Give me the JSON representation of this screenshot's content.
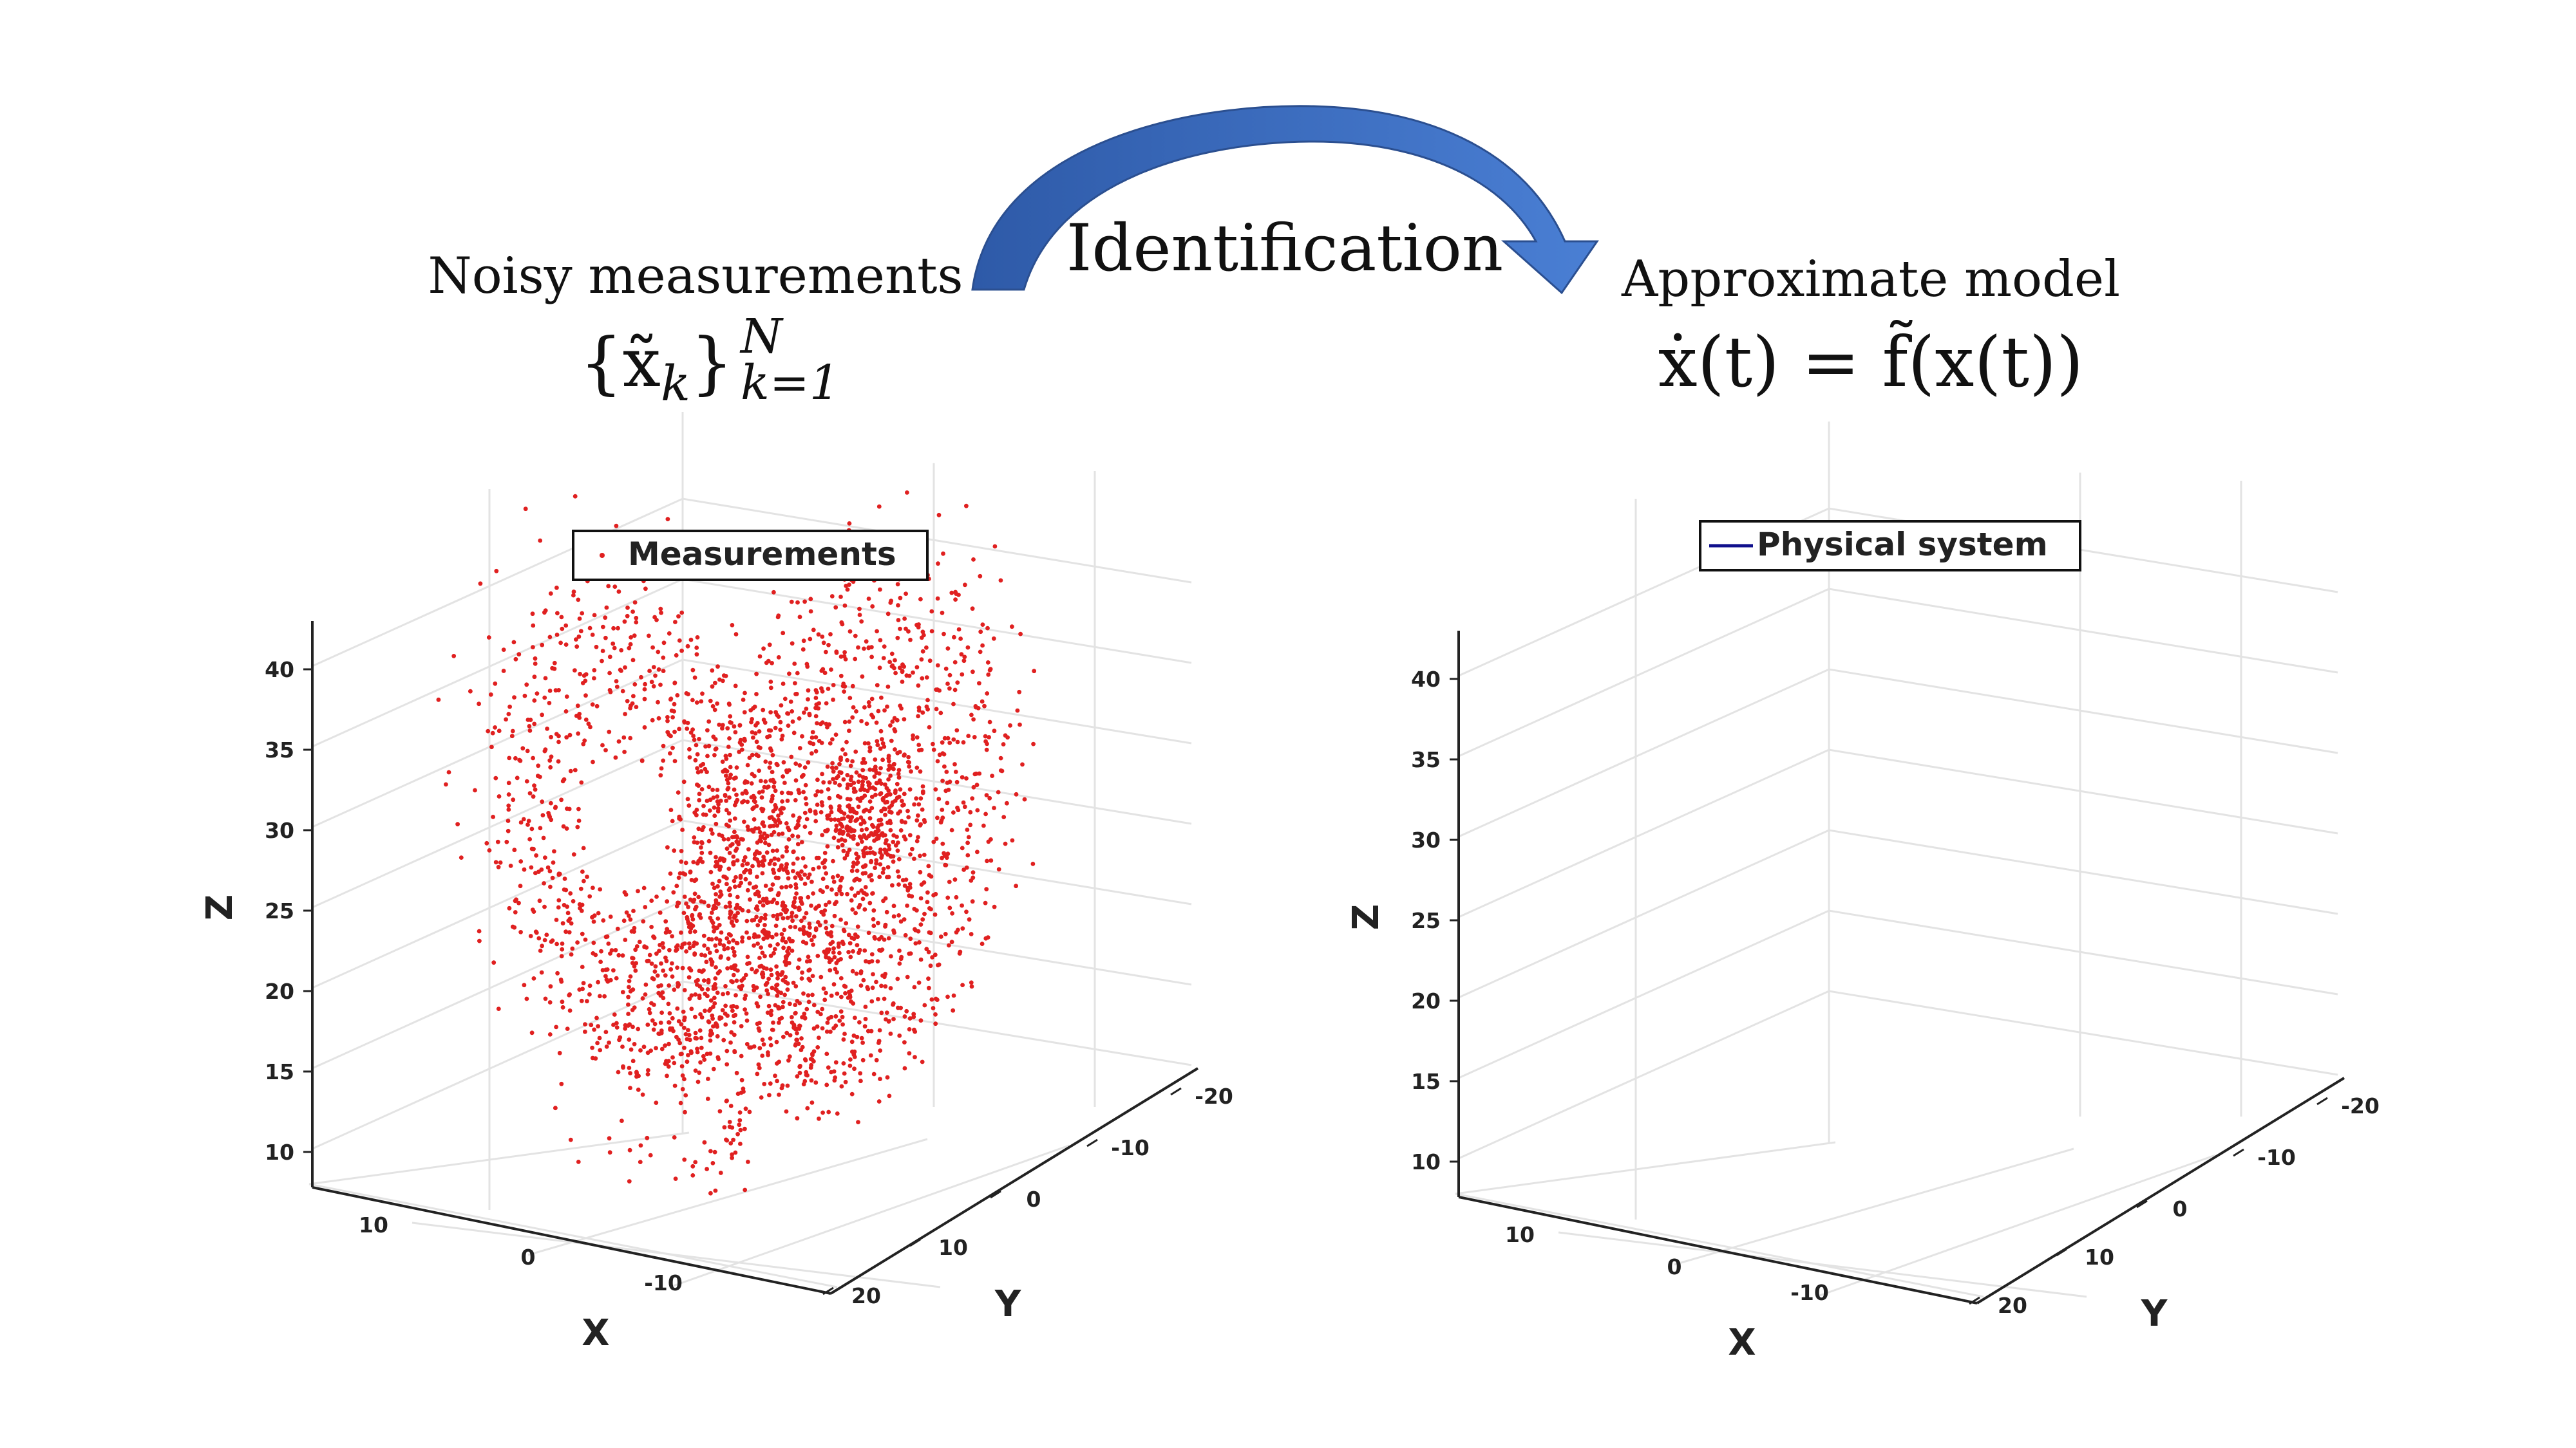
{
  "arrow": {
    "label": "Identification",
    "color_dark": "#2e5aa8",
    "color_light": "#4a7fd4"
  },
  "left": {
    "caption": "Noisy measurements",
    "formula_base": "{x̃",
    "formula_sub": "k",
    "formula_close": "}",
    "formula_sup": "N",
    "formula_lower": "k=1"
  },
  "right": {
    "caption": "Approximate model",
    "formula": "ẋ(t) = f̃(x(t))"
  },
  "chart_data": [
    {
      "type": "scatter",
      "subtype": "3d",
      "legend": "Measurements",
      "legend_position": "top-center",
      "color": "#e02020",
      "xlabel": "X",
      "ylabel": "Y",
      "zlabel": "Z",
      "x_ticks": [
        "10",
        "0",
        "-10"
      ],
      "y_ticks": [
        "-20",
        "-10",
        "0",
        "10",
        "20"
      ],
      "z_ticks": [
        "40",
        "35",
        "30",
        "25",
        "20",
        "15",
        "10"
      ],
      "grid": true
    },
    {
      "type": "line",
      "subtype": "3d",
      "legend": "Physical system",
      "legend_position": "top-center",
      "color": "#10108c",
      "xlabel": "X",
      "ylabel": "Y",
      "zlabel": "Z",
      "x_ticks": [
        "10",
        "0",
        "-10"
      ],
      "y_ticks": [
        "-20",
        "-10",
        "0",
        "10",
        "20"
      ],
      "z_ticks": [
        "40",
        "35",
        "30",
        "25",
        "20",
        "15",
        "10"
      ],
      "grid": true
    }
  ]
}
